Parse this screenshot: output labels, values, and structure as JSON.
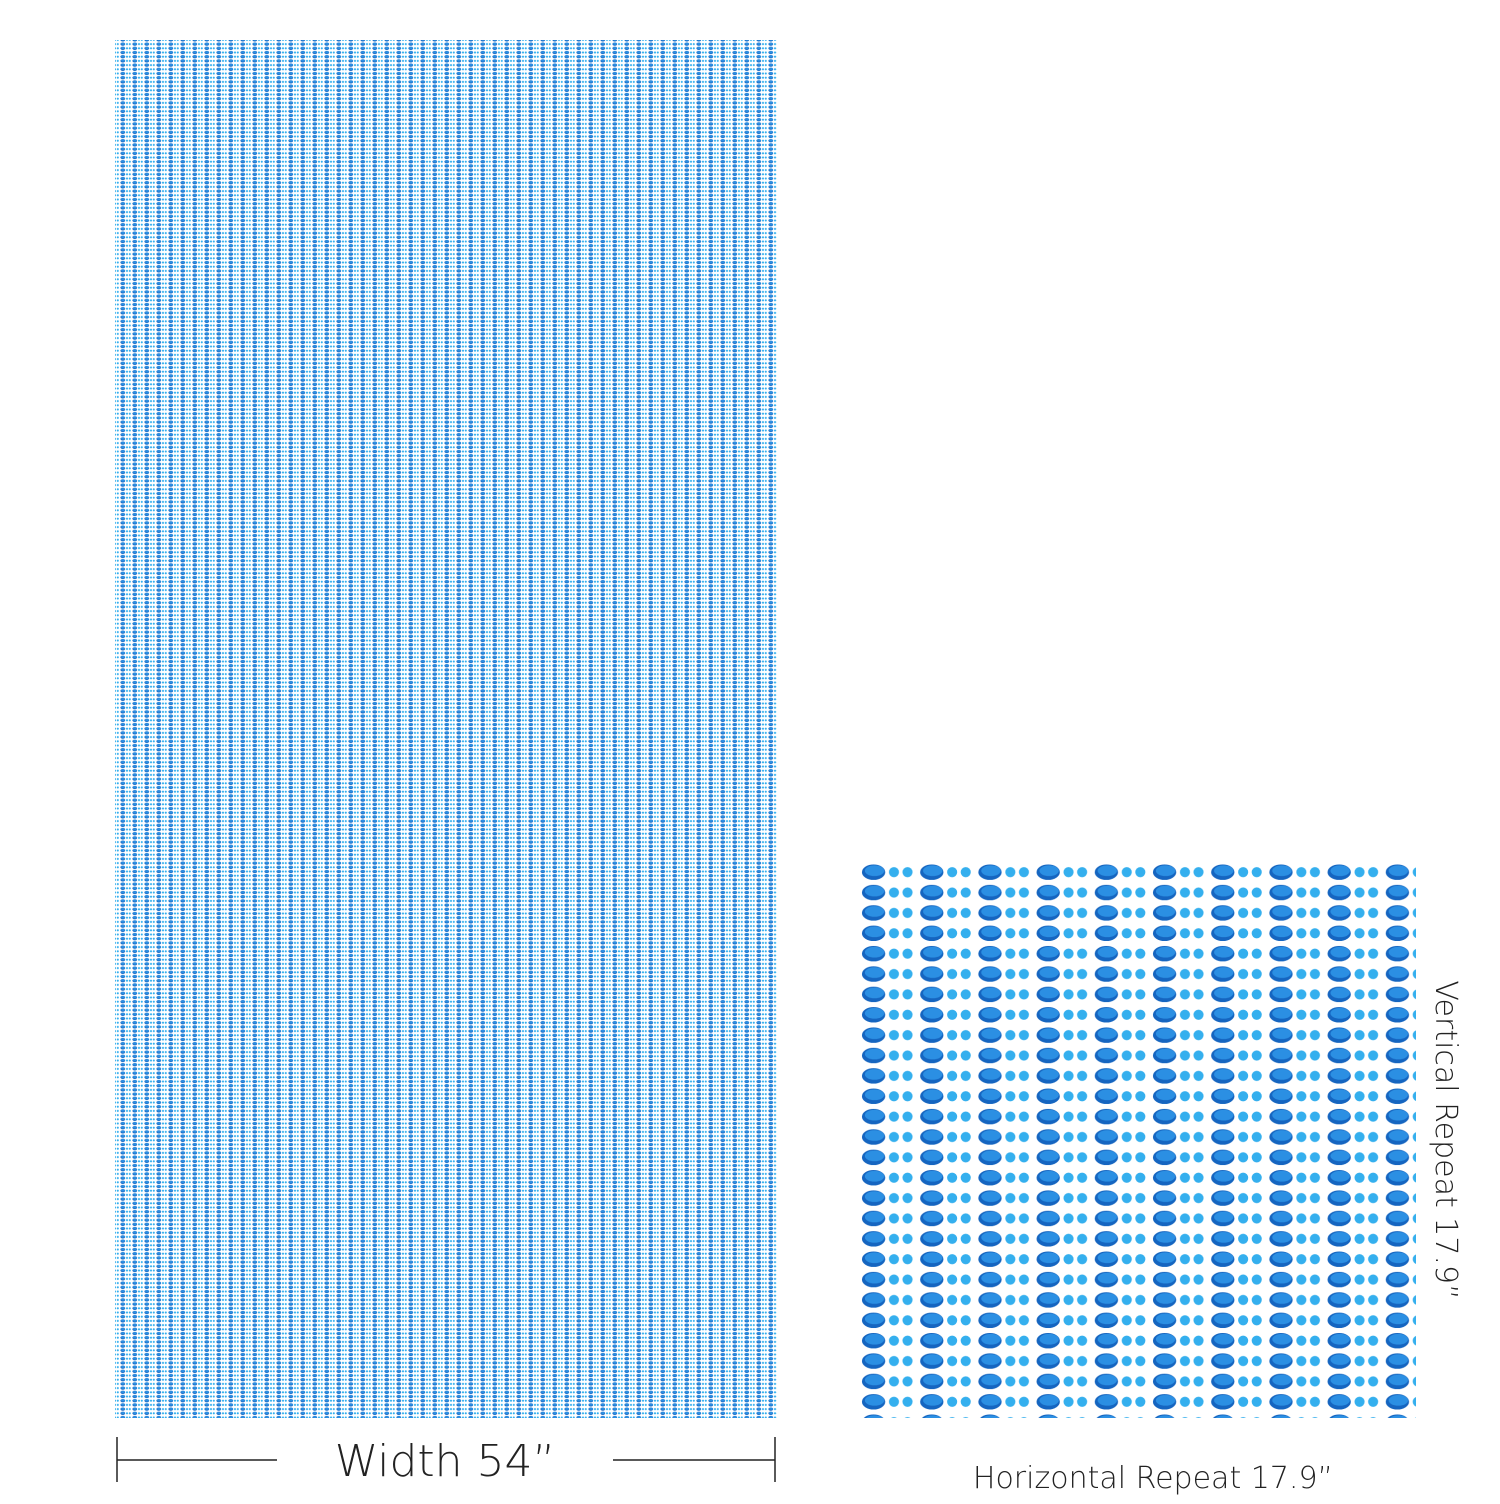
{
  "labels": {
    "width": "Width 54”",
    "horizontal_repeat": "Horizontal Repeat 17.9”",
    "vertical_repeat": "Vertical Repeat 17.9”"
  }
}
